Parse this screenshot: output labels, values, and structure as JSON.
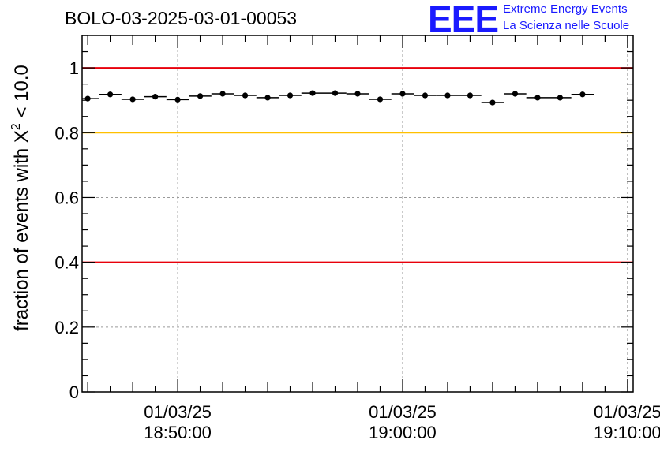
{
  "header": {
    "title": "BOLO-03-2025-03-01-00053",
    "logo_text": "EEE",
    "logo_line1": "Extreme Energy Events",
    "logo_line2": "La Scienza nelle Scuole"
  },
  "colors": {
    "red_threshold": "#e8000b",
    "yellow_threshold": "#ffc000",
    "points": "#000000",
    "logo": "#1a1aff"
  },
  "chart_data": {
    "type": "scatter",
    "title": "BOLO-03-2025-03-01-00053",
    "ylabel": "fraction of events with X² < 10.0",
    "ylabel_parts": {
      "main": "fraction of events with X",
      "sup": "2",
      "tail": " < 10.0"
    },
    "xlabel": "",
    "ylim": [
      0,
      1.1
    ],
    "xlim": [
      "2025-03-01 18:45:45",
      "2025-03-01 19:10:15"
    ],
    "x_tick_labels": [
      {
        "t": "2025-03-01 18:50:00",
        "date": "01/03/25",
        "time": "18:50:00"
      },
      {
        "t": "2025-03-01 19:00:00",
        "date": "01/03/25",
        "time": "19:00:00"
      },
      {
        "t": "2025-03-01 19:10:00",
        "date": "01/03/25",
        "time": "19:10:00"
      }
    ],
    "y_ticks": [
      0,
      0.2,
      0.4,
      0.6,
      0.8,
      1
    ],
    "y_tick_labels": [
      "0",
      "0.2",
      "0.4",
      "0.6",
      "0.8",
      "1"
    ],
    "reference_lines": [
      {
        "y": 1.0,
        "color": "#e8000b"
      },
      {
        "y": 0.8,
        "color": "#ffc000"
      },
      {
        "y": 0.4,
        "color": "#e8000b"
      }
    ],
    "grid": true,
    "bin_width_seconds": 60,
    "points": [
      {
        "t": "2025-03-01 18:46:00",
        "y": 0.905
      },
      {
        "t": "2025-03-01 18:47:00",
        "y": 0.918
      },
      {
        "t": "2025-03-01 18:48:00",
        "y": 0.903
      },
      {
        "t": "2025-03-01 18:49:00",
        "y": 0.911
      },
      {
        "t": "2025-03-01 18:50:00",
        "y": 0.902
      },
      {
        "t": "2025-03-01 18:51:00",
        "y": 0.913
      },
      {
        "t": "2025-03-01 18:52:00",
        "y": 0.92
      },
      {
        "t": "2025-03-01 18:53:00",
        "y": 0.915
      },
      {
        "t": "2025-03-01 18:54:00",
        "y": 0.908
      },
      {
        "t": "2025-03-01 18:55:00",
        "y": 0.915
      },
      {
        "t": "2025-03-01 18:56:00",
        "y": 0.922
      },
      {
        "t": "2025-03-01 18:57:00",
        "y": 0.922
      },
      {
        "t": "2025-03-01 18:58:00",
        "y": 0.92
      },
      {
        "t": "2025-03-01 18:59:00",
        "y": 0.903
      },
      {
        "t": "2025-03-01 19:00:00",
        "y": 0.92
      },
      {
        "t": "2025-03-01 19:01:00",
        "y": 0.915
      },
      {
        "t": "2025-03-01 19:02:00",
        "y": 0.915
      },
      {
        "t": "2025-03-01 19:03:00",
        "y": 0.915
      },
      {
        "t": "2025-03-01 19:04:00",
        "y": 0.893
      },
      {
        "t": "2025-03-01 19:05:00",
        "y": 0.92
      },
      {
        "t": "2025-03-01 19:06:00",
        "y": 0.908
      },
      {
        "t": "2025-03-01 19:07:00",
        "y": 0.908
      },
      {
        "t": "2025-03-01 19:08:00",
        "y": 0.918
      }
    ]
  }
}
